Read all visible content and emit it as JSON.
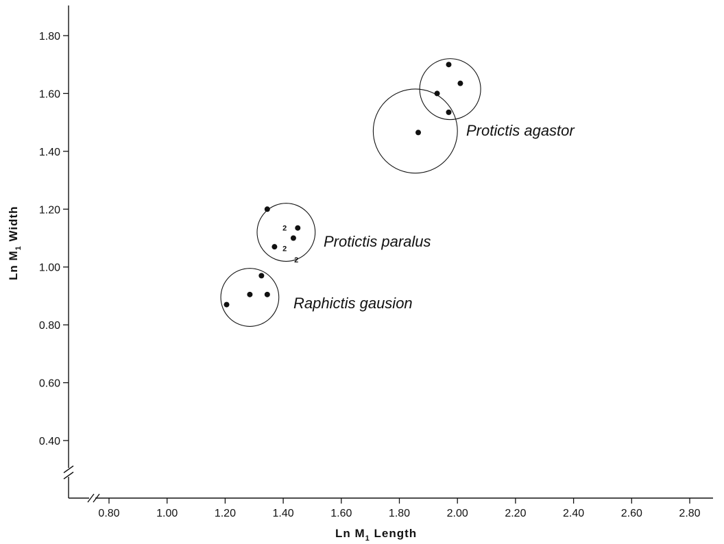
{
  "chart_data": {
    "type": "scatter",
    "xlabel": {
      "prefix": "Ln M",
      "sub": "1",
      "suffix": " Length"
    },
    "ylabel": {
      "prefix": "Ln M",
      "sub": "1",
      "suffix": " Width"
    },
    "xlim": [
      0.7,
      2.9
    ],
    "ylim": [
      0.3,
      1.9
    ],
    "axis_breaks": true,
    "grid": false,
    "x_ticks": [
      {
        "value": 0.8,
        "label": "0.80"
      },
      {
        "value": 1.0,
        "label": "1.00"
      },
      {
        "value": 1.2,
        "label": "1.20"
      },
      {
        "value": 1.4,
        "label": "1.40"
      },
      {
        "value": 1.6,
        "label": "1.60"
      },
      {
        "value": 1.8,
        "label": "1.80"
      },
      {
        "value": 2.0,
        "label": "2.00"
      },
      {
        "value": 2.2,
        "label": "2.20"
      },
      {
        "value": 2.4,
        "label": "2.40"
      },
      {
        "value": 2.6,
        "label": "2.60"
      },
      {
        "value": 2.8,
        "label": "2.80"
      }
    ],
    "y_ticks": [
      {
        "value": 0.4,
        "label": "0.40"
      },
      {
        "value": 0.6,
        "label": "0.60"
      },
      {
        "value": 0.8,
        "label": "0.80"
      },
      {
        "value": 1.0,
        "label": "1.00"
      },
      {
        "value": 1.2,
        "label": "1.20"
      },
      {
        "value": 1.4,
        "label": "1.40"
      },
      {
        "value": 1.6,
        "label": "1.60"
      },
      {
        "value": 1.8,
        "label": "1.80"
      }
    ],
    "series": [
      {
        "name": "Protictis agastor",
        "points": [
          {
            "x": 1.97,
            "y": 1.7
          },
          {
            "x": 1.93,
            "y": 1.6
          },
          {
            "x": 2.01,
            "y": 1.635
          },
          {
            "x": 1.97,
            "y": 1.535
          },
          {
            "x": 1.865,
            "y": 1.465
          }
        ],
        "outlines": [
          {
            "cx": 1.975,
            "cy": 1.615,
            "r": 0.105
          },
          {
            "cx": 1.855,
            "cy": 1.47,
            "r": 0.145
          }
        ]
      },
      {
        "name": "Protictis paralus",
        "points": [
          {
            "x": 1.345,
            "y": 1.2
          },
          {
            "x": 1.45,
            "y": 1.135
          },
          {
            "x": 1.435,
            "y": 1.1
          },
          {
            "x": 1.37,
            "y": 1.07
          }
        ],
        "counts": [
          {
            "x": 1.405,
            "y": 1.135,
            "label": "2"
          },
          {
            "x": 1.405,
            "y": 1.065,
            "label": "2"
          },
          {
            "x": 1.445,
            "y": 1.025,
            "label": "2"
          }
        ],
        "outlines": [
          {
            "cx": 1.41,
            "cy": 1.12,
            "r": 0.1
          }
        ]
      },
      {
        "name": "Raphictis gausion",
        "points": [
          {
            "x": 1.325,
            "y": 0.97
          },
          {
            "x": 1.285,
            "y": 0.905
          },
          {
            "x": 1.345,
            "y": 0.905
          },
          {
            "x": 1.205,
            "y": 0.87
          }
        ],
        "outlines": [
          {
            "cx": 1.285,
            "cy": 0.895,
            "r": 0.1
          }
        ]
      }
    ]
  }
}
